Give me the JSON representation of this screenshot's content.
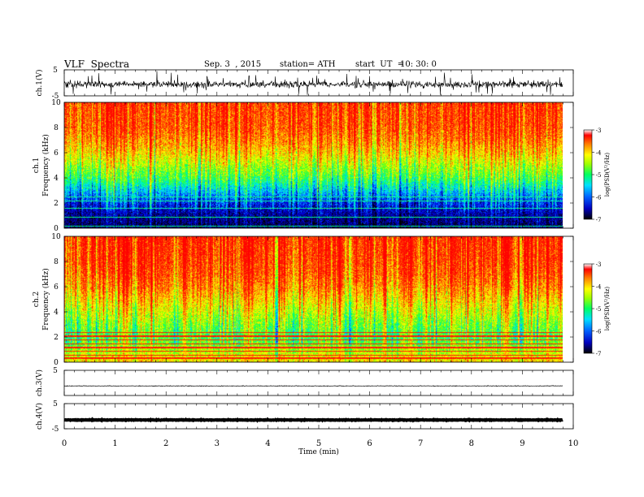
{
  "header": {
    "title": "VLF  Spectra",
    "date": "Sep. 3  , 2015",
    "station": "station= ATH",
    "start_label": "start  UT  =",
    "start_time": "10: 30: 0"
  },
  "chart_data": [
    {
      "type": "line",
      "panel": "ch1-waveform",
      "ylabel": "ch.1(V)",
      "ylim": [
        -5,
        5
      ],
      "yticks": [
        "5",
        "-5"
      ],
      "x": [
        0,
        9.8
      ],
      "description_of_signal": "noisy waveform, amplitude about ±2 V with frequent spikes"
    },
    {
      "type": "heatmap",
      "panel": "ch1-spectrogram",
      "ylabel": "ch.1\nFrequency (kHz)",
      "ylabel_line1": "ch.1",
      "ylabel_line2": "Frequency (kHz)",
      "ylim": [
        0,
        10
      ],
      "yticks": [
        "0",
        "2",
        "4",
        "6",
        "8",
        "10"
      ],
      "xlim": [
        0,
        10
      ],
      "colorbar": {
        "label": "log(PSD(V²/Hz)",
        "ticks": [
          "-3",
          "-4",
          "-5",
          "-6",
          "-7"
        ],
        "range": [
          -7,
          -3
        ]
      },
      "profile_freq_khz": [
        0,
        1,
        2,
        3,
        4,
        5,
        6,
        7,
        8,
        10
      ],
      "profile_log_psd": [
        -6.8,
        -6.6,
        -6.2,
        -5.6,
        -5.0,
        -4.6,
        -4.2,
        -3.9,
        -3.7,
        -3.6
      ]
    },
    {
      "type": "heatmap",
      "panel": "ch2-spectrogram",
      "ylabel_line1": "ch.2",
      "ylabel_line2": "Frequency (kHz)",
      "ylim": [
        0,
        10
      ],
      "yticks": [
        "0",
        "2",
        "4",
        "6",
        "8",
        "10"
      ],
      "xlim": [
        0,
        10
      ],
      "colorbar": {
        "label": "log(PSD(V²/Hz)",
        "ticks": [
          "-3",
          "-4",
          "-5",
          "-6",
          "-7"
        ],
        "range": [
          -7,
          -3
        ]
      },
      "profile_freq_khz": [
        0,
        1,
        2,
        3,
        4,
        5,
        6,
        7,
        8,
        10
      ],
      "profile_log_psd": [
        -4.2,
        -4.6,
        -5.0,
        -4.8,
        -4.5,
        -4.2,
        -3.9,
        -3.7,
        -3.6,
        -3.5
      ]
    },
    {
      "type": "line",
      "panel": "ch3-waveform",
      "ylabel": "ch.3(V)",
      "ylim": [
        -5,
        5
      ],
      "yticks": [
        "5"
      ],
      "x": [
        0,
        9.8
      ],
      "level_v": -1.2
    },
    {
      "type": "line",
      "panel": "ch4-waveform",
      "ylabel": "ch.4(V)",
      "ylim": [
        -5,
        5
      ],
      "yticks": [
        "5",
        "-5"
      ],
      "x": [
        0,
        9.8
      ],
      "level_v": -1.5
    }
  ],
  "xaxis": {
    "label": "Time  (min)",
    "ticks": [
      "0",
      "1",
      "2",
      "3",
      "4",
      "5",
      "6",
      "7",
      "8",
      "9",
      "10"
    ],
    "xlim": [
      0,
      10
    ]
  },
  "colors": {
    "palette": [
      "#000000",
      "#000080",
      "#0000ff",
      "#00a0ff",
      "#00ffff",
      "#00ff60",
      "#80ff00",
      "#ffff00",
      "#ffa000",
      "#ff2000",
      "#ff0000"
    ]
  }
}
